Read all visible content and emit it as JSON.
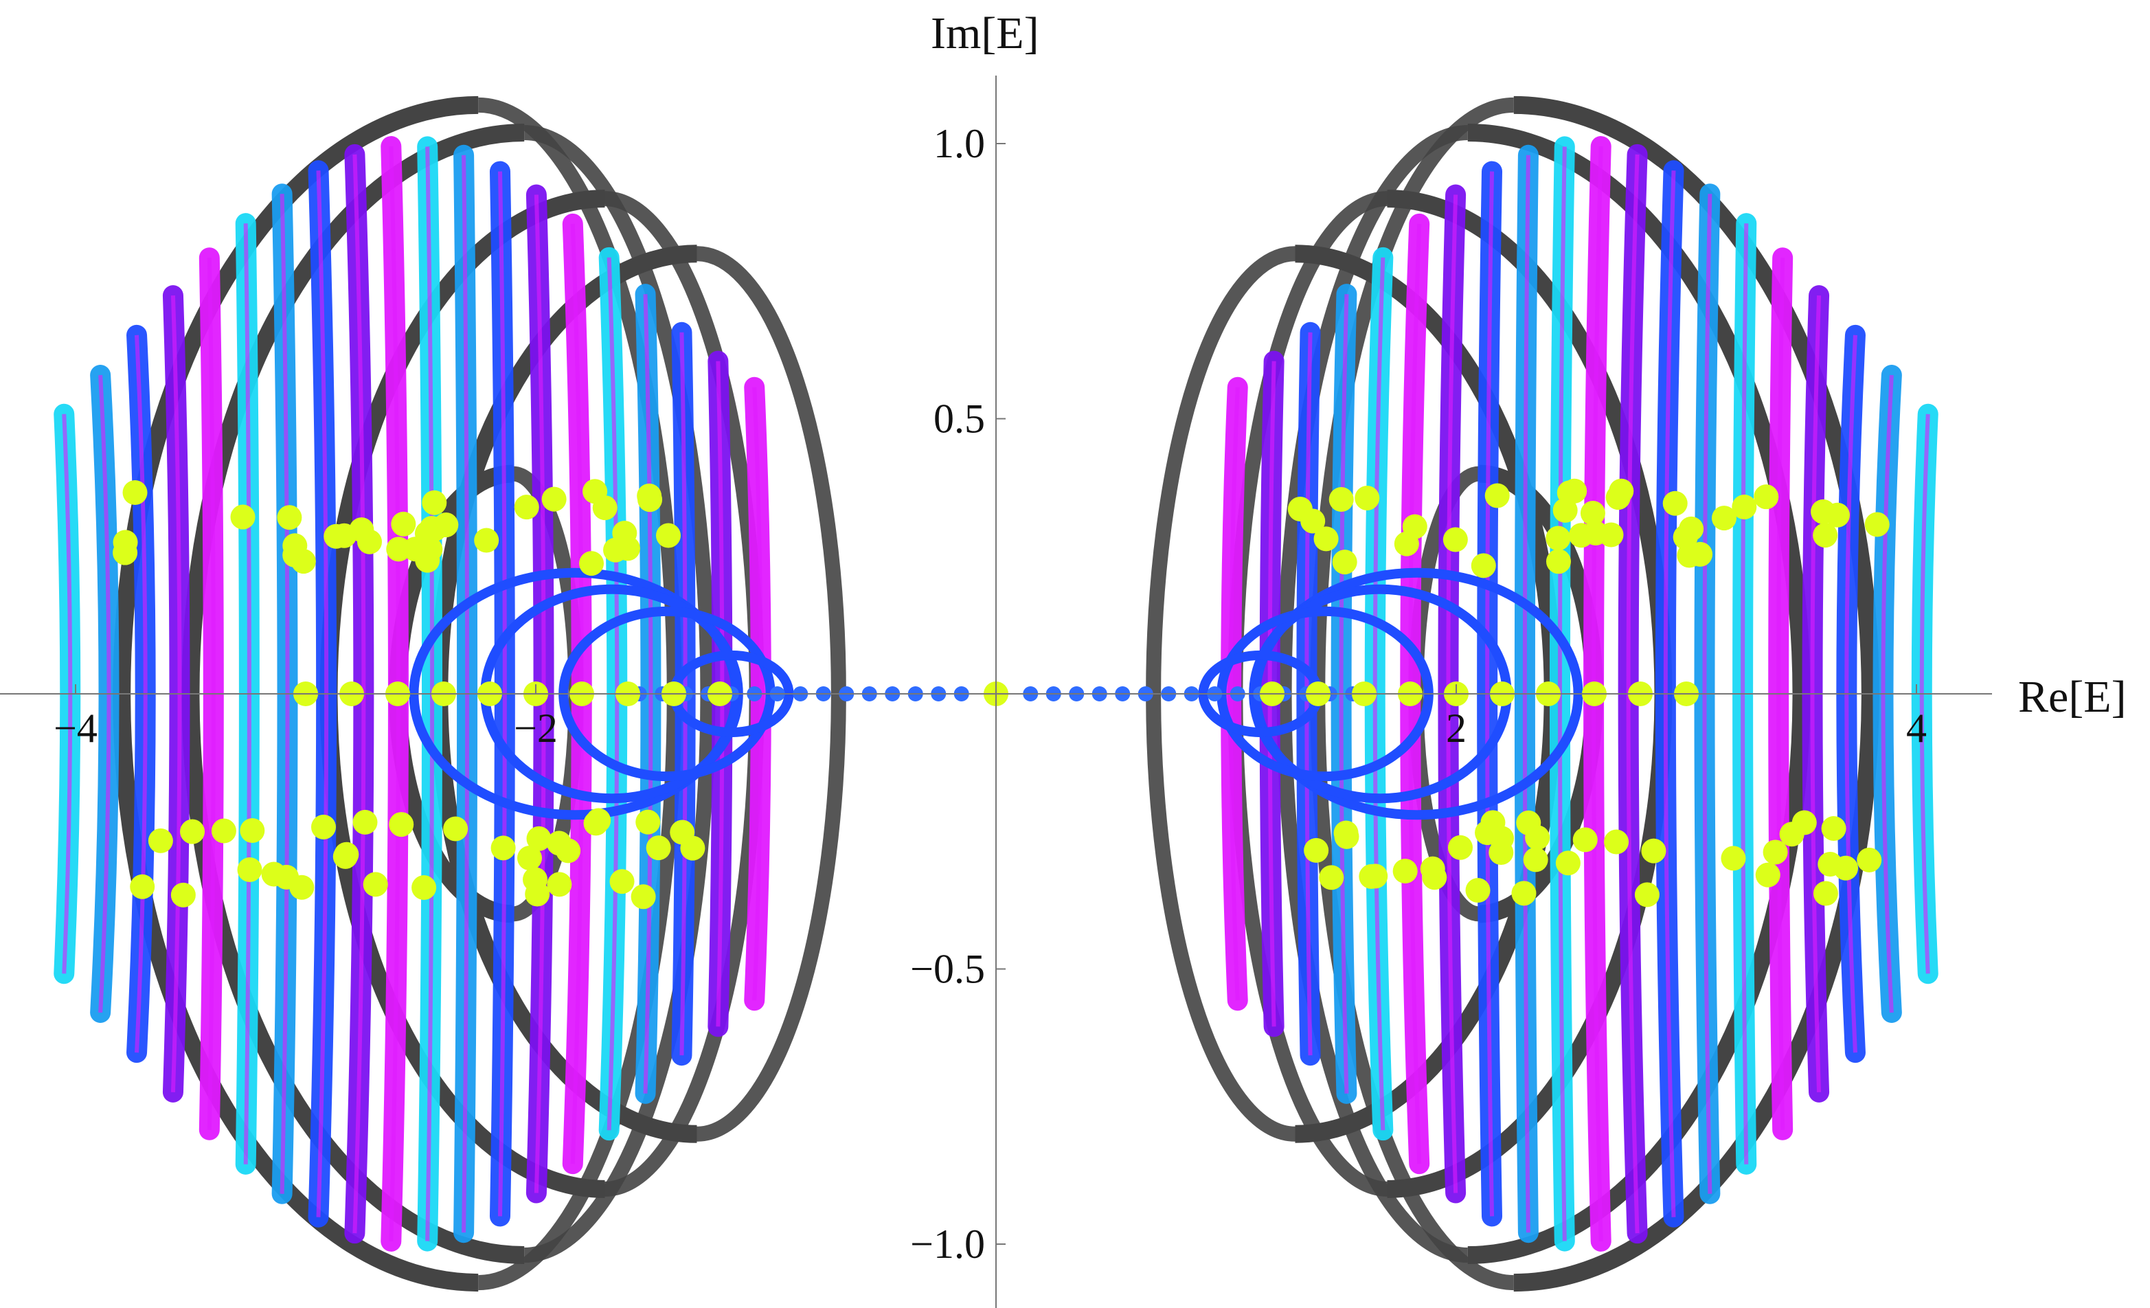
{
  "chart_data": {
    "type": "scatter",
    "xlabel": "Re[E]",
    "ylabel": "Im[E]",
    "xlim": [
      -4.25,
      4.25
    ],
    "ylim": [
      -1.1,
      1.1
    ],
    "x_ticks": [
      {
        "value": -4,
        "label": "−4"
      },
      {
        "value": -2,
        "label": "−2"
      },
      {
        "value": 2,
        "label": "2"
      },
      {
        "value": 4,
        "label": "4"
      }
    ],
    "y_ticks": [
      {
        "value": 1.0,
        "label": "1.0"
      },
      {
        "value": 0.5,
        "label": "0.5"
      },
      {
        "value": -0.5,
        "label": "−0.5"
      },
      {
        "value": -1.0,
        "label": "−1.0"
      }
    ],
    "grid": false,
    "axes_origin": [
      0,
      0
    ],
    "colors": {
      "outer_rings": "#444444",
      "cyan": "#1ad8f5",
      "sky_blue": "#1a9df0",
      "blue": "#1f4dff",
      "violet": "#7b12f0",
      "magenta": "#e01aff",
      "yellow_points": "#dcff1a",
      "real_axis_points": "#2f6cff"
    },
    "series": [
      {
        "kind": "outer_ring_arcs",
        "color": "outer_rings",
        "arcs": [
          {
            "c": 2.25,
            "a": 1.55,
            "b": 1.07
          },
          {
            "c": 2.05,
            "a": 1.45,
            "b": 1.02
          },
          {
            "c": 1.7,
            "a": 1.2,
            "b": 0.9
          },
          {
            "c": 1.3,
            "a": 1.12,
            "b": 0.8
          },
          {
            "c": 2.1,
            "a": 0.5,
            "b": 0.4
          }
        ]
      },
      {
        "kind": "inner_arcs",
        "colors": [
          "cyan",
          "sky_blue",
          "blue",
          "violet",
          "magenta"
        ],
        "x_start": -4.05,
        "x_end": -1.05,
        "count": 20
      },
      {
        "kind": "loops",
        "color": "blue",
        "loops": [
          {
            "c": 1.55,
            "a": 0.7,
            "b": 0.22
          },
          {
            "c": 1.45,
            "a": 0.55,
            "b": 0.19
          },
          {
            "c": 1.25,
            "a": 0.45,
            "b": 0.15
          },
          {
            "c": 1.05,
            "a": 0.25,
            "b": 0.07
          }
        ]
      },
      {
        "kind": "real_axis_points",
        "color": "real_axis_points",
        "x": [
          -1.55,
          -1.45,
          -1.35,
          -1.25,
          -1.15,
          -1.05,
          -0.95,
          -0.85,
          -0.75,
          -0.65,
          -0.55,
          -0.45,
          -0.35,
          -0.25,
          -0.15,
          0.15,
          0.25,
          0.35,
          0.45,
          0.55,
          0.65,
          0.75,
          0.85,
          0.95,
          1.05,
          1.15,
          1.25,
          1.35,
          1.45,
          1.55
        ]
      },
      {
        "kind": "yellow_real_axis",
        "color": "yellow_points",
        "x": [
          -3.0,
          -2.8,
          -2.6,
          -2.4,
          -2.2,
          -2.0,
          -1.8,
          -1.6,
          -1.4,
          -1.2,
          0.0,
          1.2,
          1.4,
          1.6,
          1.8,
          2.0,
          2.2,
          2.4,
          2.6,
          2.8,
          3.0
        ]
      },
      {
        "kind": "yellow_clusters",
        "color": "yellow_points",
        "x_range": [
          1.3,
          3.9
        ],
        "y_center": 0.3
      }
    ]
  }
}
